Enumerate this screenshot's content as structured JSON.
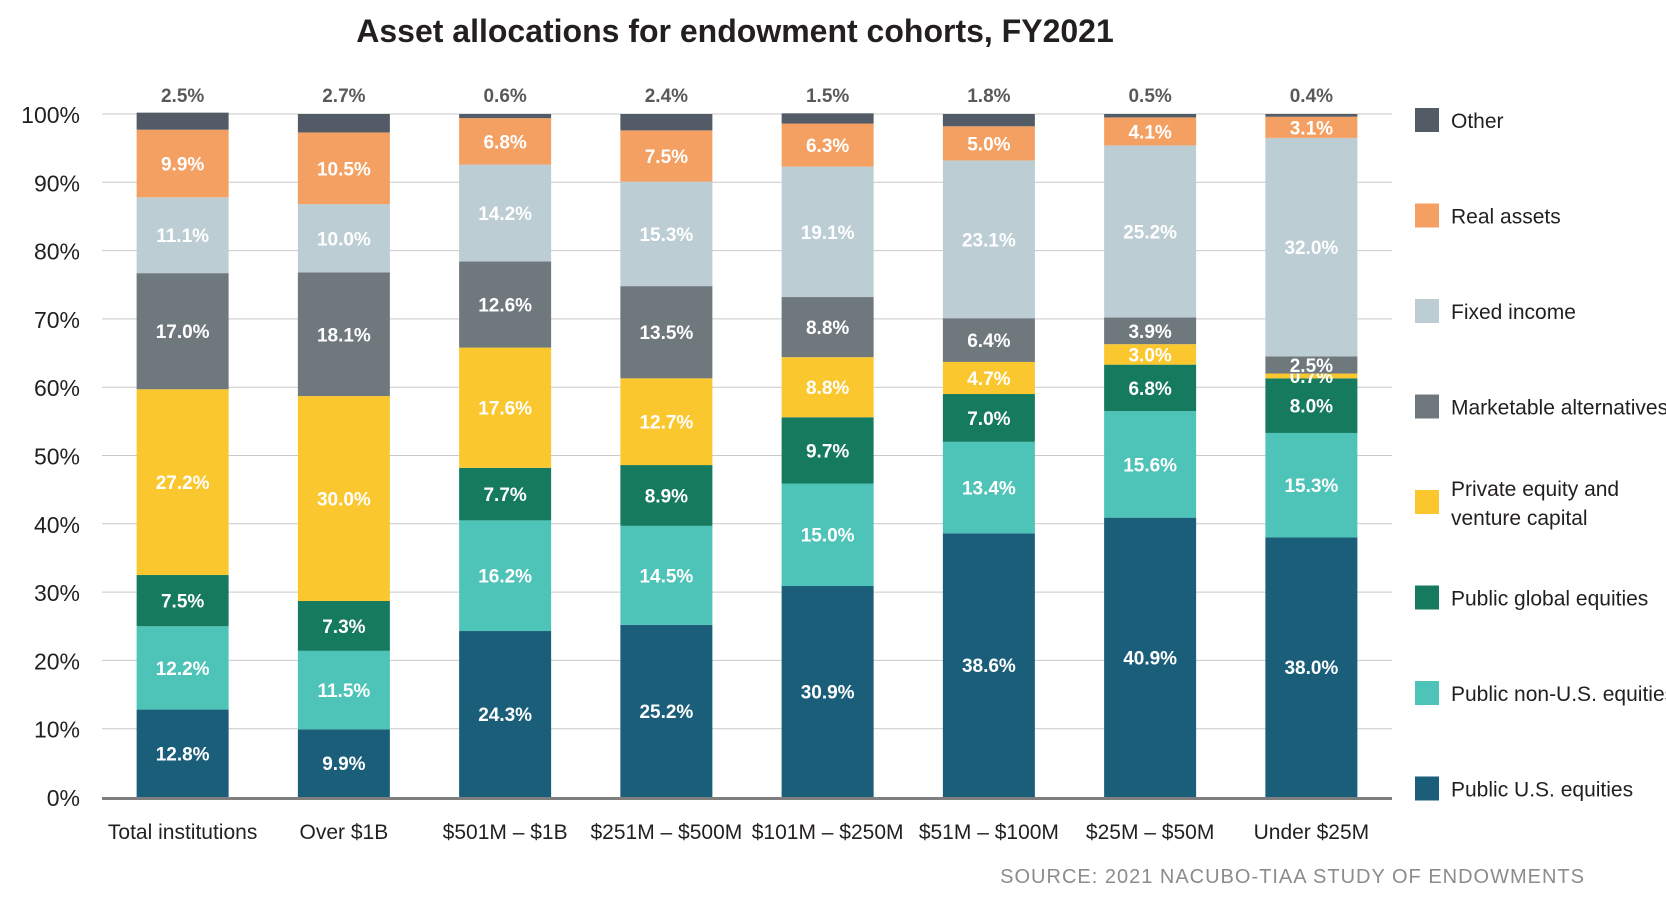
{
  "chart_data": {
    "type": "bar",
    "stacked": true,
    "title": "Asset allocations for endowment cohorts, FY2021",
    "source": "SOURCE: 2021 NACUBO-TIAA STUDY OF ENDOWMENTS",
    "ylim": [
      0,
      100
    ],
    "y_ticks": [
      "0%",
      "10%",
      "20%",
      "30%",
      "40%",
      "50%",
      "60%",
      "70%",
      "80%",
      "90%",
      "100%"
    ],
    "grid": "horizontal",
    "legend_position": "right",
    "categories": [
      "Total institutions",
      "Over $1B",
      "$501M – $1B",
      "$251M – $500M",
      "$101M – $250M",
      "$51M – $100M",
      "$25M – $50M",
      "Under $25M"
    ],
    "series": [
      {
        "name": "Public U.S. equities",
        "color": "#1b5e7a",
        "label_color": "#ffffff",
        "values": [
          12.8,
          9.9,
          24.3,
          25.2,
          30.9,
          38.6,
          40.9,
          38.0
        ],
        "labels": [
          "12.8%",
          "9.9%",
          "24.3%",
          "25.2%",
          "30.9%",
          "38.6%",
          "40.9%",
          "38.0%"
        ]
      },
      {
        "name": "Public non-U.S. equities",
        "color": "#4ec3b7",
        "label_color": "#ffffff",
        "values": [
          12.2,
          11.5,
          16.2,
          14.5,
          15.0,
          13.4,
          15.6,
          15.3
        ],
        "labels": [
          "12.2%",
          "11.5%",
          "16.2%",
          "14.5%",
          "15.0%",
          "13.4%",
          "15.6%",
          "15.3%"
        ]
      },
      {
        "name": "Public global equities",
        "color": "#167a5e",
        "label_color": "#ffffff",
        "values": [
          7.5,
          7.3,
          7.7,
          8.9,
          9.7,
          7.0,
          6.8,
          8.0
        ],
        "labels": [
          "7.5%",
          "7.3%",
          "7.7%",
          "8.9%",
          "9.7%",
          "7.0%",
          "6.8%",
          "8.0%"
        ]
      },
      {
        "name": "Private equity and venture capital",
        "color": "#fbc72e",
        "label_color": "#ffffff",
        "values": [
          27.2,
          30.0,
          17.6,
          12.7,
          8.8,
          4.7,
          3.0,
          0.7
        ],
        "labels": [
          "27.2%",
          "30.0%",
          "17.6%",
          "12.7%",
          "8.8%",
          "4.7%",
          "3.0%",
          "0.7%"
        ]
      },
      {
        "name": "Marketable alternatives",
        "color": "#6f787d",
        "label_color": "#ffffff",
        "values": [
          17.0,
          18.1,
          12.6,
          13.5,
          8.8,
          6.4,
          3.9,
          2.5
        ],
        "labels": [
          "17.0%",
          "18.1%",
          "12.6%",
          "13.5%",
          "8.8%",
          "6.4%",
          "3.9%",
          "2.5%"
        ]
      },
      {
        "name": "Fixed income",
        "color": "#bccdd4",
        "label_color": "#ffffff",
        "values": [
          11.1,
          10.0,
          14.2,
          15.3,
          19.1,
          23.1,
          25.2,
          32.0
        ],
        "labels": [
          "11.1%",
          "10.0%",
          "14.2%",
          "15.3%",
          "19.1%",
          "23.1%",
          "25.2%",
          "32.0%"
        ]
      },
      {
        "name": "Real assets",
        "color": "#f4a062",
        "label_color": "#ffffff",
        "values": [
          9.9,
          10.5,
          6.8,
          7.5,
          6.3,
          5.0,
          4.1,
          3.1
        ],
        "labels": [
          "9.9%",
          "10.5%",
          "6.8%",
          "7.5%",
          "6.3%",
          "5.0%",
          "4.1%",
          "3.1%"
        ]
      },
      {
        "name": "Other",
        "color": "#535c66",
        "label_color": "#58595b",
        "values": [
          2.5,
          2.7,
          0.6,
          2.4,
          1.5,
          1.8,
          0.5,
          0.4
        ],
        "labels": [
          "2.5%",
          "2.7%",
          "0.6%",
          "2.4%",
          "1.5%",
          "1.8%",
          "0.5%",
          "0.4%"
        ]
      }
    ],
    "legend_order": [
      "Other",
      "Real assets",
      "Fixed income",
      "Marketable alternatives",
      "Private equity and venture capital",
      "Public global equities",
      "Public non-U.S. equities",
      "Public U.S. equities"
    ]
  }
}
